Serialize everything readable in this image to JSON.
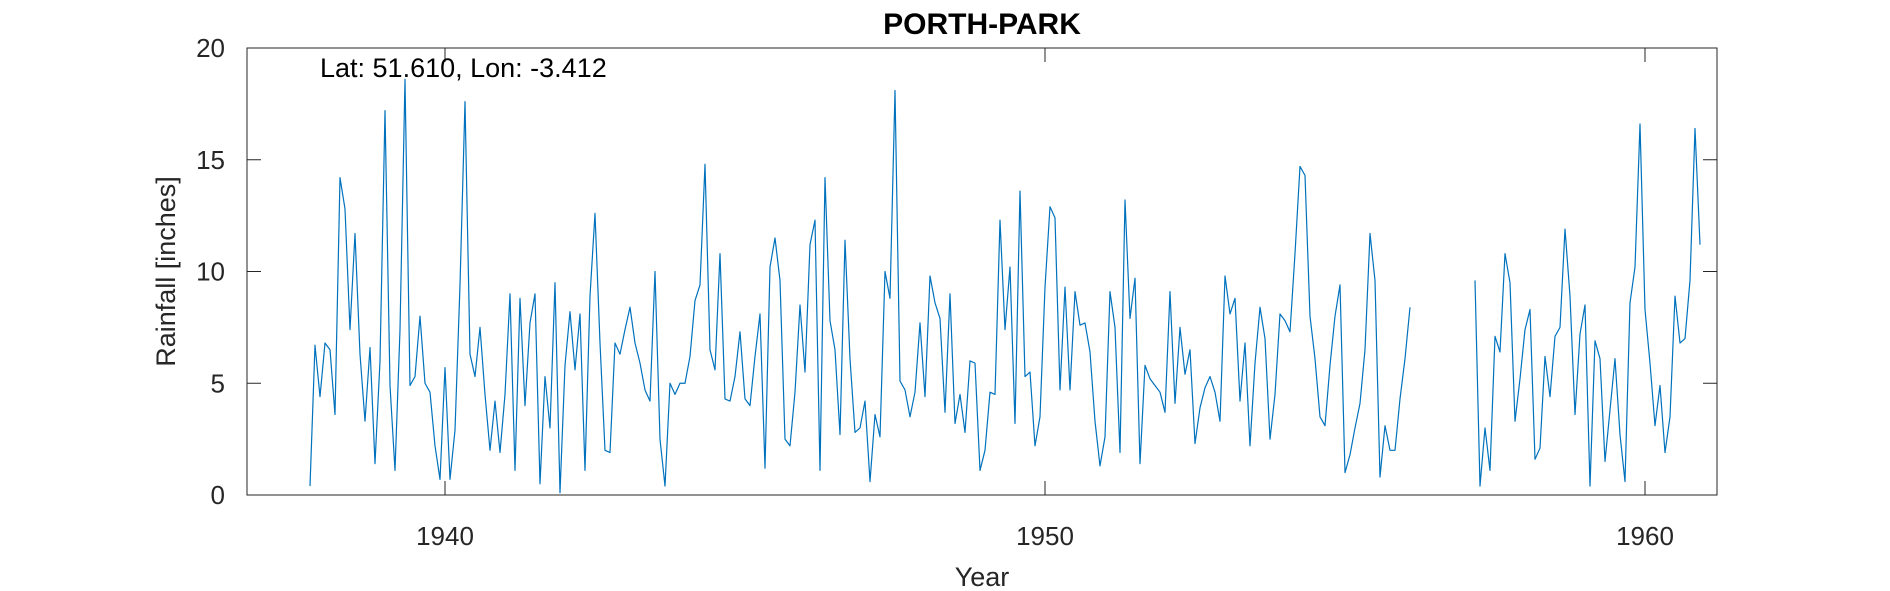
{
  "chart_data": {
    "type": "line",
    "title": "PORTH-PARK",
    "xlabel": "Year",
    "ylabel": "Rainfall [inches]",
    "annotation": "Lat: 51.610, Lon: -3.412",
    "xlim": [
      1936.7,
      1961.2
    ],
    "ylim": [
      0,
      20
    ],
    "xticks": [
      1940,
      1950,
      1960
    ],
    "yticks": [
      0,
      5,
      10,
      15,
      20
    ],
    "grid": false,
    "line_color": "#0072BD",
    "start_year": 1937.75,
    "step_months": 1,
    "values": [
      0.4,
      6.7,
      4.4,
      6.8,
      6.5,
      3.6,
      14.2,
      12.8,
      7.4,
      11.7,
      6.3,
      3.3,
      6.6,
      1.4,
      6.0,
      17.2,
      4.9,
      1.1,
      7.4,
      18.6,
      4.9,
      5.3,
      8.0,
      5.0,
      4.6,
      2.2,
      0.7,
      5.7,
      0.7,
      2.9,
      9.4,
      17.6,
      6.3,
      5.3,
      7.5,
      4.5,
      2.0,
      4.2,
      1.9,
      4.5,
      9.0,
      1.1,
      8.8,
      4.0,
      7.7,
      9.0,
      0.5,
      5.3,
      3.0,
      9.5,
      0.1,
      5.8,
      8.2,
      5.6,
      8.1,
      1.1,
      8.9,
      12.6,
      6.8,
      2.0,
      1.9,
      6.8,
      6.3,
      7.4,
      8.4,
      6.8,
      5.9,
      4.7,
      4.2,
      10.0,
      2.5,
      0.4,
      5.0,
      4.5,
      5.0,
      5.0,
      6.2,
      8.7,
      9.4,
      14.8,
      6.5,
      5.6,
      10.8,
      4.3,
      4.2,
      5.3,
      7.3,
      4.3,
      4.0,
      6.2,
      8.1,
      1.2,
      10.2,
      11.5,
      9.6,
      2.5,
      2.2,
      4.6,
      8.5,
      5.5,
      11.2,
      12.3,
      1.1,
      14.2,
      7.8,
      6.5,
      2.7,
      11.4,
      6.1,
      2.8,
      3.0,
      4.2,
      0.6,
      3.6,
      2.6,
      10.0,
      8.8,
      18.1,
      5.1,
      4.7,
      3.5,
      4.6,
      7.7,
      4.4,
      9.8,
      8.6,
      7.9,
      3.7,
      9.0,
      3.2,
      4.5,
      2.8,
      6.0,
      5.9,
      1.1,
      2.0,
      4.6,
      4.5,
      12.3,
      7.4,
      10.2,
      3.2,
      13.6,
      5.3,
      5.5,
      2.2,
      3.5,
      9.3,
      12.9,
      12.4,
      4.7,
      9.3,
      4.7,
      9.1,
      7.6,
      7.7,
      6.4,
      3.3,
      1.3,
      2.6,
      9.1,
      7.5,
      1.9,
      13.2,
      7.9,
      9.7,
      1.4,
      5.8,
      5.2,
      4.9,
      4.6,
      3.7,
      9.1,
      4.1,
      7.5,
      5.4,
      6.5,
      2.3,
      3.9,
      4.8,
      5.3,
      4.6,
      3.3,
      9.8,
      8.1,
      8.8,
      4.2,
      6.8,
      2.2,
      5.9,
      8.4,
      7.0,
      2.5,
      4.5,
      8.1,
      7.8,
      7.3,
      10.8,
      14.7,
      14.3,
      8.0,
      6.1,
      3.5,
      3.1,
      5.8,
      8.0,
      9.4,
      1.0,
      1.8,
      3.0,
      4.1,
      6.5,
      11.7,
      9.6,
      0.8,
      3.1,
      2.0,
      2.0,
      4.3,
      6.1,
      8.4,
      null,
      null,
      null,
      null,
      null,
      null,
      null,
      null,
      null,
      null,
      null,
      null,
      9.6,
      0.4,
      3.0,
      1.1,
      7.1,
      6.4,
      10.8,
      9.5,
      3.3,
      5.2,
      7.4,
      8.3,
      1.6,
      2.1,
      6.2,
      4.4,
      7.1,
      7.5,
      11.9,
      8.9,
      3.6,
      7.2,
      8.5,
      0.4,
      6.9,
      6.1,
      1.5,
      3.8,
      6.1,
      2.7,
      0.6,
      8.6,
      10.2,
      16.6,
      8.3,
      5.9,
      3.1,
      4.9,
      1.9,
      3.5,
      8.9,
      6.8,
      7.0,
      9.6,
      16.4,
      11.2
    ]
  }
}
